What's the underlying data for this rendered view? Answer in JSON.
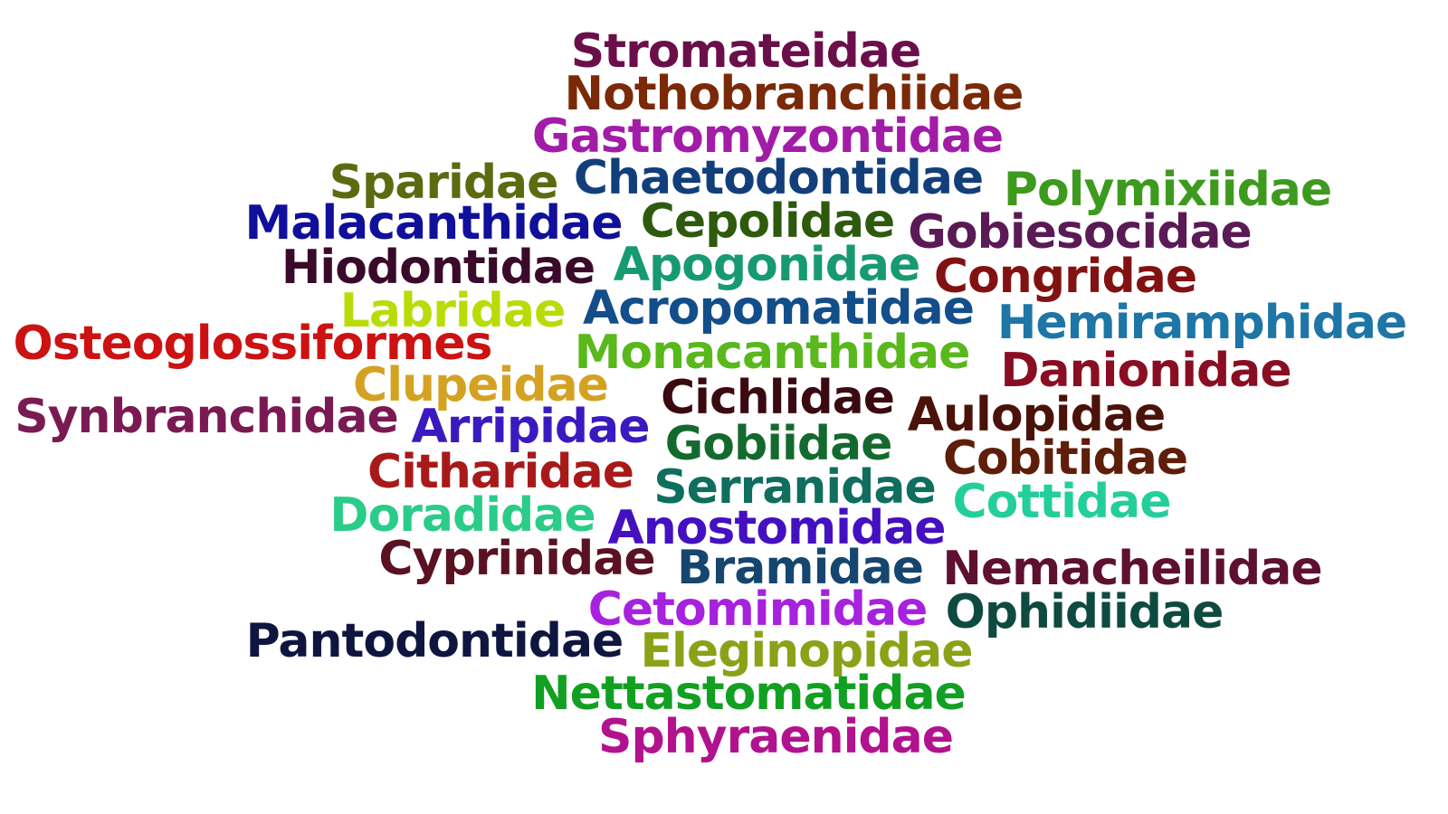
{
  "words": [
    {
      "text": "Stromateidae",
      "color": "#6B0F4A"
    },
    {
      "text": "Nothobranchiidae",
      "color": "#7A2A08"
    },
    {
      "text": "Gastromyzontidae",
      "color": "#A21CA8"
    },
    {
      "text": "Sparidae",
      "color": "#5E6A10"
    },
    {
      "text": "Chaetodontidae",
      "color": "#123F7A"
    },
    {
      "text": "Polymixiidae",
      "color": "#3E9A1E"
    },
    {
      "text": "Malacanthidae",
      "color": "#10109A"
    },
    {
      "text": "Cepolidae",
      "color": "#2E5A0E"
    },
    {
      "text": "Gobiesocidae",
      "color": "#5A1A55"
    },
    {
      "text": "Hiodontidae",
      "color": "#3A0A2A"
    },
    {
      "text": "Apogonidae",
      "color": "#179A72"
    },
    {
      "text": "Congridae",
      "color": "#821212"
    },
    {
      "text": "Labridae",
      "color": "#B8DC08"
    },
    {
      "text": "Acropomatidae",
      "color": "#134E8A"
    },
    {
      "text": "Osteoglossiformes",
      "color": "#CC1212"
    },
    {
      "text": "Hemiramphidae",
      "color": "#1E76A6"
    },
    {
      "text": "Monacanthidae",
      "color": "#58B81C"
    },
    {
      "text": "Danionidae",
      "color": "#8A0E22"
    },
    {
      "text": "Clupeidae",
      "color": "#D4A222"
    },
    {
      "text": "Cichlidae",
      "color": "#3A0A10"
    },
    {
      "text": "Synbranchidae",
      "color": "#7A1A52"
    },
    {
      "text": "Arripidae",
      "color": "#3A1AC0"
    },
    {
      "text": "Aulopidae",
      "color": "#4A120A"
    },
    {
      "text": "Gobiidae",
      "color": "#146A2E"
    },
    {
      "text": "Cobitidae",
      "color": "#5E1E0A"
    },
    {
      "text": "Citharidae",
      "color": "#A81A1A"
    },
    {
      "text": "Serranidae",
      "color": "#106E5E"
    },
    {
      "text": "Cottidae",
      "color": "#24CE9A"
    },
    {
      "text": "Doradidae",
      "color": "#2ACC88"
    },
    {
      "text": "Anostomidae",
      "color": "#4410C0"
    },
    {
      "text": "Cyprinidae",
      "color": "#5A1222"
    },
    {
      "text": "Bramidae",
      "color": "#16466E"
    },
    {
      "text": "Nemacheilidae",
      "color": "#5E1030"
    },
    {
      "text": "Cetomimidae",
      "color": "#A622DE"
    },
    {
      "text": "Ophidiidae",
      "color": "#0E4A40"
    },
    {
      "text": "Pantodontidae",
      "color": "#0E1640"
    },
    {
      "text": "Eleginopidae",
      "color": "#8AA218"
    },
    {
      "text": "Nettastomatidae",
      "color": "#12A022"
    },
    {
      "text": "Sphyraenidae",
      "color": "#B2128E"
    }
  ]
}
